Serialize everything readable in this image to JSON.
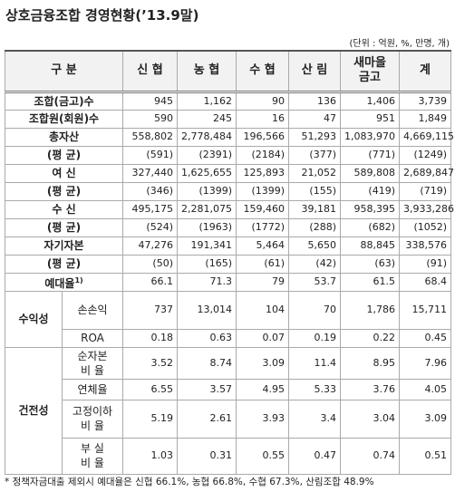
{
  "title": "상호금융조합 경영현황(’13.9말)",
  "unit": "(단위 : 억원, %, 만명, 개)",
  "table": {
    "header": [
      "구 분",
      "신 협",
      "농 협",
      "수 협",
      "산 림",
      "새마을\n금고",
      "계"
    ],
    "rows": [
      {
        "label": "조합(금고)수",
        "values": [
          "945",
          "1,162",
          "90",
          "136",
          "1,406",
          "3,739"
        ]
      },
      {
        "label": "조합원(회원)수",
        "values": [
          "590",
          "245",
          "16",
          "47",
          "951",
          "1,849"
        ]
      },
      {
        "label": "총자산",
        "values": [
          "558,802",
          "2,778,484",
          "196,566",
          "51,293",
          "1,083,970",
          "4,669,115"
        ]
      },
      {
        "label": "(평 균)",
        "values": [
          "(591)",
          "(2391)",
          "(2184)",
          "(377)",
          "(771)",
          "(1249)"
        ]
      },
      {
        "label": "여 신",
        "values": [
          "327,440",
          "1,625,655",
          "125,893",
          "21,052",
          "589,808",
          "2,689,847"
        ]
      },
      {
        "label": "(평 균)",
        "values": [
          "(346)",
          "(1399)",
          "(1399)",
          "(155)",
          "(419)",
          "(719)"
        ]
      },
      {
        "label": "수 신",
        "values": [
          "495,175",
          "2,281,075",
          "159,460",
          "39,181",
          "958,395",
          "3,933,286"
        ]
      },
      {
        "label": "(평 균)",
        "values": [
          "(524)",
          "(1963)",
          "(1772)",
          "(288)",
          "(682)",
          "(1052)"
        ]
      },
      {
        "label": "자기자본",
        "values": [
          "47,276",
          "191,341",
          "5,464",
          "5,650",
          "88,845",
          "338,576"
        ]
      },
      {
        "label": "(평 균)",
        "values": [
          "(50)",
          "(165)",
          "(61)",
          "(42)",
          "(63)",
          "(91)"
        ]
      },
      {
        "label": "예대율",
        "note": "1)",
        "values": [
          "66.1",
          "71.3",
          "79",
          "53.7",
          "61.5",
          "68.4"
        ]
      }
    ],
    "groups": [
      {
        "name": "수익성",
        "rows": [
          {
            "label": "손손익",
            "values": [
              "737",
              "13,014",
              "104",
              "70",
              "1,786",
              "15,711"
            ]
          },
          {
            "label": "ROA",
            "values": [
              "0.18",
              "0.63",
              "0.07",
              "0.19",
              "0.22",
              "0.45"
            ]
          }
        ]
      },
      {
        "name": "건전성",
        "rows": [
          {
            "label": "순자본\n비 율",
            "values": [
              "3.52",
              "8.74",
              "3.09",
              "11.4",
              "8.95",
              "7.96"
            ]
          },
          {
            "label": "연체율",
            "values": [
              "6.55",
              "3.57",
              "4.95",
              "5.33",
              "3.76",
              "4.05"
            ]
          },
          {
            "label": "고정이하\n비 율",
            "values": [
              "5.19",
              "2.61",
              "3.93",
              "3.4",
              "3.04",
              "3.09"
            ]
          },
          {
            "label": "부 실\n비 율",
            "values": [
              "1.03",
              "0.31",
              "0.55",
              "0.47",
              "0.74",
              "0.51"
            ]
          }
        ]
      }
    ]
  },
  "footnote": "* 정책자금대출 제외시 예대율은 신협 66.1%, 농협 66.8%, 수협 67.3%, 산림조합 48.9%"
}
